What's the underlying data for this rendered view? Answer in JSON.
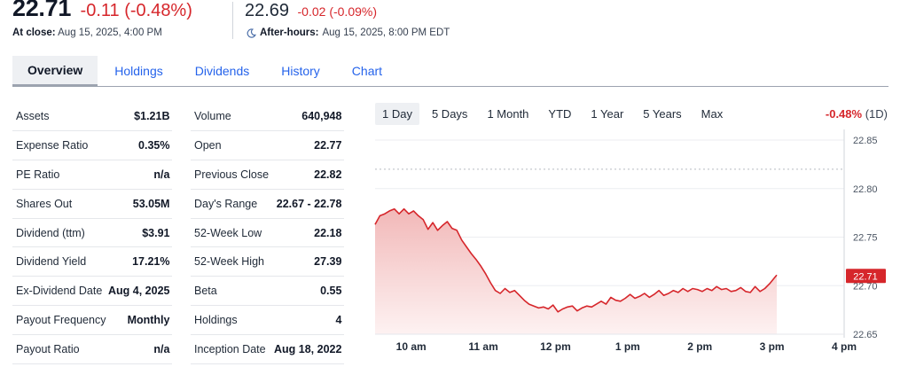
{
  "quote": {
    "price": "22.71",
    "change": "-0.11 (-0.48%)",
    "close_label": "At close:",
    "close_time": "Aug 15, 2025, 4:00 PM",
    "ah_price": "22.69",
    "ah_change": "-0.02 (-0.09%)",
    "ah_label": "After-hours:",
    "ah_time": "Aug 15, 2025, 8:00 PM EDT"
  },
  "tabs": [
    "Overview",
    "Holdings",
    "Dividends",
    "History",
    "Chart"
  ],
  "stats_left": [
    {
      "label": "Assets",
      "value": "$1.21B"
    },
    {
      "label": "Expense Ratio",
      "value": "0.35%"
    },
    {
      "label": "PE Ratio",
      "value": "n/a"
    },
    {
      "label": "Shares Out",
      "value": "53.05M"
    },
    {
      "label": "Dividend (ttm)",
      "value": "$3.91"
    },
    {
      "label": "Dividend Yield",
      "value": "17.21%"
    },
    {
      "label": "Ex-Dividend Date",
      "value": "Aug 4, 2025"
    },
    {
      "label": "Payout Frequency",
      "value": "Monthly"
    },
    {
      "label": "Payout Ratio",
      "value": "n/a"
    }
  ],
  "stats_right": [
    {
      "label": "Volume",
      "value": "640,948"
    },
    {
      "label": "Open",
      "value": "22.77"
    },
    {
      "label": "Previous Close",
      "value": "22.82"
    },
    {
      "label": "Day's Range",
      "value": "22.67 - 22.78"
    },
    {
      "label": "52-Week Low",
      "value": "22.18"
    },
    {
      "label": "52-Week High",
      "value": "27.39"
    },
    {
      "label": "Beta",
      "value": "0.55"
    },
    {
      "label": "Holdings",
      "value": "4"
    },
    {
      "label": "Inception Date",
      "value": "Aug 18, 2022"
    }
  ],
  "chart": {
    "ranges": [
      "1 Day",
      "5 Days",
      "1 Month",
      "YTD",
      "1 Year",
      "5 Years",
      "Max"
    ],
    "active_range": "1 Day",
    "perf_value": "-0.48%",
    "perf_period": "(1D)",
    "last_price_label": "22.71",
    "colors": {
      "line": "#d6262b",
      "fill_top": "#f1b4b4",
      "fill_bottom": "#fdf0f0",
      "prev_close": "#c4c8ce"
    }
  },
  "chart_data": {
    "type": "area",
    "title": "",
    "xlabel": "",
    "ylabel": "",
    "x_ticks": [
      "10 am",
      "11 am",
      "12 pm",
      "1 pm",
      "2 pm",
      "3 pm",
      "4 pm"
    ],
    "y_ticks": [
      "22.85",
      "22.80",
      "22.75",
      "22.70",
      "22.65"
    ],
    "ylim": [
      22.65,
      22.85
    ],
    "xlim": [
      "9:30",
      "16:00"
    ],
    "previous_close": 22.82,
    "last_value": 22.71,
    "series": [
      {
        "x": [
          "9:30",
          "9:34",
          "9:38",
          "9:42",
          "9:46",
          "9:50",
          "9:54",
          "9:58",
          "10:02",
          "10:06",
          "10:10",
          "10:14",
          "10:18",
          "10:22",
          "10:26",
          "10:30",
          "10:34",
          "10:38",
          "10:42",
          "10:46",
          "10:50",
          "10:54",
          "10:58",
          "11:02",
          "11:06",
          "11:10",
          "11:14",
          "11:18",
          "11:22",
          "11:26",
          "11:30",
          "11:34",
          "11:38",
          "11:42",
          "11:46",
          "11:50",
          "11:54",
          "11:58",
          "12:02",
          "12:06",
          "12:10",
          "12:14",
          "12:18",
          "12:22",
          "12:26",
          "12:30",
          "12:34",
          "12:38",
          "12:42",
          "12:46",
          "12:50",
          "12:54",
          "12:58",
          "13:02",
          "13:06",
          "13:10",
          "13:14",
          "13:18",
          "13:22",
          "13:26",
          "13:30",
          "13:34",
          "13:38",
          "13:42",
          "13:46",
          "13:50",
          "13:54",
          "13:58",
          "14:02",
          "14:06",
          "14:10",
          "14:14",
          "14:18",
          "14:22",
          "14:26",
          "14:30",
          "14:34",
          "14:38",
          "14:42",
          "14:46",
          "14:50",
          "14:54",
          "14:58",
          "15:02",
          "15:04"
        ],
        "values": [
          22.763,
          22.772,
          22.774,
          22.777,
          22.779,
          22.774,
          22.779,
          22.774,
          22.777,
          22.772,
          22.768,
          22.758,
          22.765,
          22.757,
          22.762,
          22.766,
          22.759,
          22.757,
          22.747,
          22.74,
          22.733,
          22.727,
          22.72,
          22.712,
          22.703,
          22.695,
          22.692,
          22.697,
          22.693,
          22.695,
          22.69,
          22.685,
          22.681,
          22.679,
          22.677,
          22.678,
          22.676,
          22.68,
          22.673,
          22.676,
          22.678,
          22.679,
          22.674,
          22.677,
          22.679,
          22.678,
          22.681,
          22.684,
          22.681,
          22.688,
          22.685,
          22.684,
          22.687,
          22.691,
          22.687,
          22.689,
          22.692,
          22.688,
          22.691,
          22.695,
          22.69,
          22.692,
          22.695,
          22.693,
          22.697,
          22.694,
          22.697,
          22.696,
          22.694,
          22.697,
          22.695,
          22.699,
          22.696,
          22.697,
          22.694,
          22.695,
          22.698,
          22.694,
          22.693,
          22.699,
          22.694,
          22.697,
          22.702,
          22.708,
          22.711
        ]
      }
    ]
  }
}
